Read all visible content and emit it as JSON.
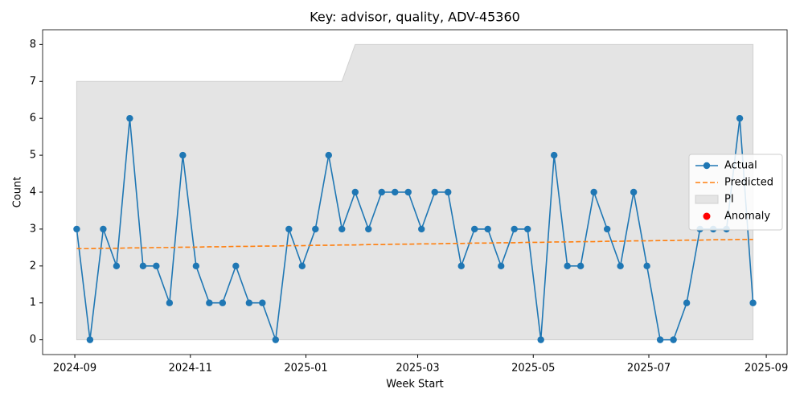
{
  "chart_data": {
    "type": "line",
    "title": "Key: advisor, quality, ADV-45360",
    "x_label": "Week Start",
    "y_label": "Count",
    "x": [
      "2024-09-02",
      "2024-09-09",
      "2024-09-16",
      "2024-09-23",
      "2024-09-30",
      "2024-10-07",
      "2024-10-14",
      "2024-10-21",
      "2024-10-28",
      "2024-11-04",
      "2024-11-11",
      "2024-11-18",
      "2024-11-25",
      "2024-12-02",
      "2024-12-09",
      "2024-12-16",
      "2024-12-23",
      "2024-12-30",
      "2025-01-06",
      "2025-01-13",
      "2025-01-20",
      "2025-01-27",
      "2025-02-03",
      "2025-02-10",
      "2025-02-17",
      "2025-02-24",
      "2025-03-03",
      "2025-03-10",
      "2025-03-17",
      "2025-03-24",
      "2025-03-31",
      "2025-04-07",
      "2025-04-14",
      "2025-04-21",
      "2025-04-28",
      "2025-05-05",
      "2025-05-12",
      "2025-05-19",
      "2025-05-26",
      "2025-06-02",
      "2025-06-09",
      "2025-06-16",
      "2025-06-23",
      "2025-06-30",
      "2025-07-07",
      "2025-07-14",
      "2025-07-21",
      "2025-07-28",
      "2025-08-04",
      "2025-08-11",
      "2025-08-18",
      "2025-08-25"
    ],
    "series": [
      {
        "name": "Actual",
        "color": "#1f77b4",
        "marker": true,
        "dashed": false,
        "values": [
          3,
          0,
          3,
          2,
          6,
          2,
          2,
          1,
          5,
          2,
          1,
          1,
          2,
          1,
          1,
          0,
          3,
          2,
          3,
          5,
          3,
          4,
          3,
          4,
          4,
          4,
          3,
          4,
          4,
          2,
          3,
          3,
          2,
          3,
          3,
          0,
          5,
          2,
          2,
          4,
          3,
          2,
          4,
          2,
          0,
          0,
          1,
          3,
          3,
          3,
          6,
          1
        ]
      },
      {
        "name": "Predicted",
        "color": "#ff7f0e",
        "marker": false,
        "dashed": true,
        "values": [
          2.47,
          2.47,
          2.48,
          2.48,
          2.49,
          2.49,
          2.5,
          2.5,
          2.51,
          2.51,
          2.52,
          2.52,
          2.53,
          2.53,
          2.54,
          2.54,
          2.55,
          2.55,
          2.56,
          2.56,
          2.57,
          2.57,
          2.58,
          2.58,
          2.59,
          2.59,
          2.6,
          2.6,
          2.61,
          2.61,
          2.62,
          2.62,
          2.63,
          2.63,
          2.64,
          2.64,
          2.65,
          2.65,
          2.66,
          2.66,
          2.67,
          2.67,
          2.68,
          2.68,
          2.69,
          2.69,
          2.7,
          2.7,
          2.71,
          2.71,
          2.72,
          2.72
        ]
      }
    ],
    "band": {
      "name": "PI",
      "color": "#e4e4e4",
      "edge": "#d0d0d0",
      "lower": [
        0,
        0,
        0,
        0,
        0,
        0,
        0,
        0,
        0,
        0,
        0,
        0,
        0,
        0,
        0,
        0,
        0,
        0,
        0,
        0,
        0,
        0,
        0,
        0,
        0,
        0,
        0,
        0,
        0,
        0,
        0,
        0,
        0,
        0,
        0,
        0,
        0,
        0,
        0,
        0,
        0,
        0,
        0,
        0,
        0,
        0,
        0,
        0,
        0,
        0,
        0,
        0
      ],
      "upper": [
        7,
        7,
        7,
        7,
        7,
        7,
        7,
        7,
        7,
        7,
        7,
        7,
        7,
        7,
        7,
        7,
        7,
        7,
        7,
        7,
        7,
        8,
        8,
        8,
        8,
        8,
        8,
        8,
        8,
        8,
        8,
        8,
        8,
        8,
        8,
        8,
        8,
        8,
        8,
        8,
        8,
        8,
        8,
        8,
        8,
        8,
        8,
        8,
        8,
        8,
        8,
        8
      ]
    },
    "anomalies": {
      "name": "Anomaly",
      "color": "#ff0000",
      "values": [
        null,
        null,
        null,
        null,
        null,
        null,
        null,
        null,
        null,
        null,
        null,
        null,
        null,
        null,
        null,
        null,
        null,
        null,
        null,
        null,
        null,
        null,
        null,
        null,
        null,
        null,
        null,
        null,
        null,
        null,
        null,
        null,
        null,
        null,
        null,
        null,
        null,
        null,
        null,
        null,
        null,
        null,
        null,
        null,
        null,
        null,
        null,
        null,
        null,
        null,
        null,
        null
      ]
    },
    "xlim": [
      "2024-08-15",
      "2025-09-12"
    ],
    "xticks": [
      {
        "value": "2024-09-01",
        "label": "2024-09"
      },
      {
        "value": "2024-11-01",
        "label": "2024-11"
      },
      {
        "value": "2025-01-01",
        "label": "2025-01"
      },
      {
        "value": "2025-03-01",
        "label": "2025-03"
      },
      {
        "value": "2025-05-01",
        "label": "2025-05"
      },
      {
        "value": "2025-07-01",
        "label": "2025-07"
      },
      {
        "value": "2025-09-01",
        "label": "2025-09"
      }
    ],
    "ylim": [
      -0.4,
      8.4
    ],
    "yticks": [
      0,
      1,
      2,
      3,
      4,
      5,
      6,
      7,
      8
    ],
    "grid": false,
    "legend": "center right"
  }
}
